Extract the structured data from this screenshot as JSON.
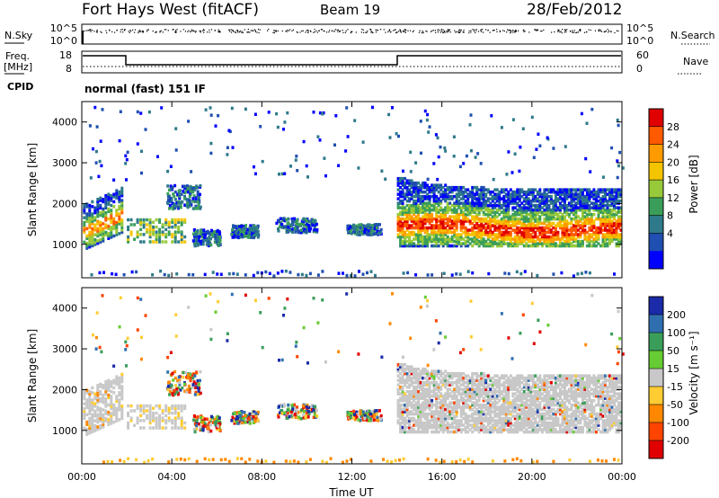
{
  "header": {
    "station": "Fort Hays West (fitACF)",
    "beam": "Beam 19",
    "date": "28/Feb/2012"
  },
  "strips": {
    "nsky_label": "N.Sky",
    "nsky_ticks": [
      "10^5",
      "10^0"
    ],
    "nsearch_label": "N.Search",
    "nsearch_ticks": [
      "10^5",
      "10^0"
    ],
    "freq_label": "Freq.",
    "freq_unit": "[MHz]",
    "freq_ticks": [
      "18",
      "8"
    ],
    "nave_label": "Nave",
    "nave_ticks": [
      "60",
      "0"
    ],
    "cpid_label": "CPID",
    "cpid_text": "normal (fast) 151 IF"
  },
  "chart_data": [
    {
      "type": "heatmap",
      "panel": "power",
      "ylabel": "Slant Range [km]",
      "xlabel": "Time UT",
      "xticks": [
        "00:00",
        "04:00",
        "08:00",
        "12:00",
        "16:00",
        "20:00",
        "00:00"
      ],
      "yticks": [
        1000,
        2000,
        3000,
        4000
      ],
      "ylim": [
        180,
        4500
      ],
      "xlim_hours": [
        0,
        24
      ],
      "colorbar": {
        "label": "Power [dB]",
        "ticks": [
          "28",
          "24",
          "20",
          "16",
          "12",
          "8",
          "4"
        ],
        "colors": [
          "#e00000",
          "#ff5a00",
          "#ff9a00",
          "#f5c400",
          "#98c93a",
          "#3a9e5a",
          "#2e7a8a",
          "#1f4fb0",
          "#0000ff"
        ]
      },
      "dominant_features": [
        {
          "time_start": "00:00",
          "time_end": "01:50",
          "range_km": [
            1100,
            2000
          ],
          "power_db": 16
        },
        {
          "time_start": "02:00",
          "time_end": "04:30",
          "range_km": [
            1100,
            1500
          ],
          "power_db": 12
        },
        {
          "time_start": "14:00",
          "time_end": "24:00",
          "range_km": [
            1200,
            2700
          ],
          "power_db": 22
        }
      ]
    },
    {
      "type": "heatmap",
      "panel": "velocity",
      "ylabel": "Slant Range [km]",
      "xlabel": "Time UT",
      "xticks": [
        "00:00",
        "04:00",
        "08:00",
        "12:00",
        "16:00",
        "20:00",
        "00:00"
      ],
      "yticks": [
        1000,
        2000,
        3000,
        4000
      ],
      "ylim": [
        180,
        4500
      ],
      "xlim_hours": [
        0,
        24
      ],
      "colorbar": {
        "label": "Velocity [m s⁻¹]",
        "ticks": [
          "200",
          "100",
          "50",
          "15",
          "-15",
          "-50",
          "-100",
          "-200"
        ],
        "colors": [
          "#1a2aa8",
          "#2f6fb0",
          "#3a9e5a",
          "#66cc33",
          "#c8c8c8",
          "#ffcc33",
          "#ff8800",
          "#ff4400",
          "#e00000"
        ]
      },
      "dominant_features": [
        {
          "time_start": "14:00",
          "time_end": "24:00",
          "range_km": [
            1200,
            2700
          ],
          "velocity_ms": 0
        },
        {
          "time_start": "07:00",
          "time_end": "08:30",
          "range_km": [
            1000,
            1500
          ],
          "velocity_ms": -80
        }
      ]
    }
  ]
}
